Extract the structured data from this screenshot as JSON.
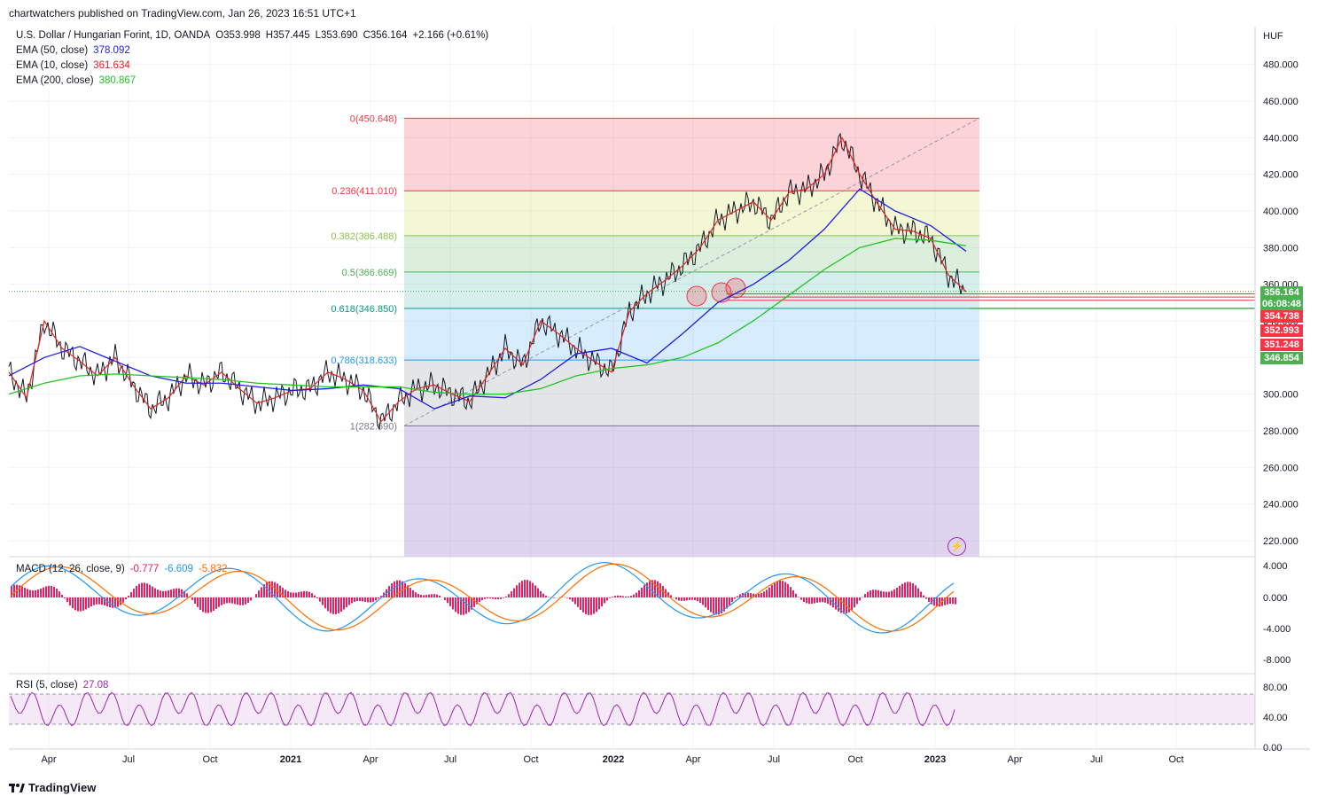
{
  "header": {
    "published": "chartwatchers published on TradingView.com, Jan 26, 2023 16:51 UTC+1"
  },
  "symbol": {
    "title": "U.S. Dollar / Hungarian Forint, 1D, OANDA",
    "open": "O353.998",
    "high": "H357.445",
    "low": "L353.690",
    "close": "C356.164",
    "change": "+2.166 (+0.61%)",
    "currency": "HUF"
  },
  "indicators": {
    "ema50": {
      "label": "EMA (50, close)",
      "value": "378.092",
      "color": "#1e1ee0"
    },
    "ema10": {
      "label": "EMA (10, close)",
      "value": "361.634",
      "color": "#e0241e"
    },
    "ema200": {
      "label": "EMA (200, close)",
      "value": "380.867",
      "color": "#22c422"
    },
    "macd": {
      "label": "MACD (12, 26, close, 9)",
      "hist": "-0.777",
      "macd": "-6.609",
      "signal": "-5.832",
      "hist_color": "#e91e63",
      "macd_color": "#2196f3",
      "signal_color": "#ff6d00"
    },
    "rsi": {
      "label": "RSI (5, close)",
      "value": "27.08",
      "color": "#9c27b0"
    }
  },
  "price_tags": [
    {
      "value": "356.164",
      "color": "#4caf50"
    },
    {
      "value": "06:08:48",
      "color": "#4caf50"
    },
    {
      "value": "354.738",
      "color": "#f23645"
    },
    {
      "value": "352.993",
      "color": "#f23645"
    },
    {
      "value": "351.248",
      "color": "#f23645"
    },
    {
      "value": "346.854",
      "color": "#4caf50"
    }
  ],
  "chart_data": {
    "type": "line",
    "ylim": [
      210,
      490
    ],
    "y_ticks": [
      "480.000",
      "460.000",
      "440.000",
      "420.000",
      "400.000",
      "380.000",
      "360.000",
      "340.000",
      "320.000",
      "300.000",
      "280.000",
      "260.000",
      "240.000",
      "220.000"
    ],
    "x_ticks": [
      "Apr",
      "Jul",
      "Oct",
      "2021",
      "Apr",
      "Jul",
      "Oct",
      "2022",
      "Apr",
      "Jul",
      "Oct",
      "2023",
      "Apr",
      "Jul",
      "Oct"
    ],
    "fibonacci": [
      {
        "label": "0(450.648)",
        "value": 450.648,
        "color": "#f23645"
      },
      {
        "label": "0.236(411.010)",
        "value": 411.01,
        "color": "#f23645"
      },
      {
        "label": "0.382(386.488)",
        "value": 386.488,
        "color": "#8bc34a"
      },
      {
        "label": "0.5(366.669)",
        "value": 366.669,
        "color": "#4caf50"
      },
      {
        "label": "0.618(346.850)",
        "value": 346.85,
        "color": "#089981"
      },
      {
        "label": "0.786(318.633)",
        "value": 318.633,
        "color": "#2196f3"
      },
      {
        "label": "1(282.690)",
        "value": 282.69,
        "color": "#787b86"
      }
    ],
    "series": [
      {
        "name": "USDHUF",
        "x": [
          0,
          20,
          40,
          60,
          80,
          100,
          120,
          140,
          160,
          180,
          200,
          220,
          240,
          260,
          280,
          300,
          320,
          340,
          360,
          380,
          400,
          420,
          440,
          460,
          480,
          500,
          520,
          540,
          560,
          580,
          600,
          620,
          640,
          660,
          680,
          700,
          720,
          740,
          760,
          780,
          800,
          820,
          840,
          860,
          880,
          900,
          920,
          940,
          960,
          980,
          1000,
          1020,
          1040,
          1060,
          1080
        ],
        "values": [
          312,
          298,
          340,
          325,
          318,
          310,
          320,
          305,
          292,
          298,
          310,
          305,
          312,
          303,
          295,
          298,
          302,
          303,
          312,
          308,
          302,
          285,
          296,
          303,
          305,
          300,
          296,
          310,
          325,
          316,
          340,
          333,
          325,
          318,
          312,
          345,
          355,
          362,
          370,
          380,
          395,
          400,
          405,
          395,
          410,
          412,
          420,
          440,
          420,
          404,
          390,
          389,
          385,
          365,
          356
        ]
      },
      {
        "name": "EMA (50, close)",
        "x": [
          0,
          40,
          80,
          120,
          160,
          200,
          240,
          280,
          320,
          360,
          400,
          440,
          480,
          520,
          560,
          600,
          640,
          680,
          720,
          760,
          800,
          840,
          880,
          920,
          960,
          1000,
          1040,
          1080
        ],
        "values": [
          310,
          320,
          326,
          318,
          310,
          306,
          306,
          304,
          302,
          303,
          305,
          303,
          292,
          299,
          298,
          308,
          322,
          325,
          317,
          333,
          350,
          360,
          373,
          390,
          412,
          400,
          392,
          378
        ]
      },
      {
        "name": "EMA (200, close)",
        "x": [
          0,
          40,
          80,
          120,
          160,
          200,
          240,
          280,
          320,
          360,
          400,
          440,
          480,
          520,
          560,
          600,
          640,
          680,
          720,
          760,
          800,
          840,
          880,
          920,
          960,
          1000,
          1040,
          1080
        ],
        "values": [
          300,
          306,
          310,
          311,
          310,
          309,
          308,
          306,
          305,
          304,
          304,
          304,
          301,
          300,
          300,
          303,
          310,
          314,
          316,
          320,
          328,
          340,
          354,
          368,
          380,
          385,
          384,
          381
        ]
      }
    ]
  }
}
